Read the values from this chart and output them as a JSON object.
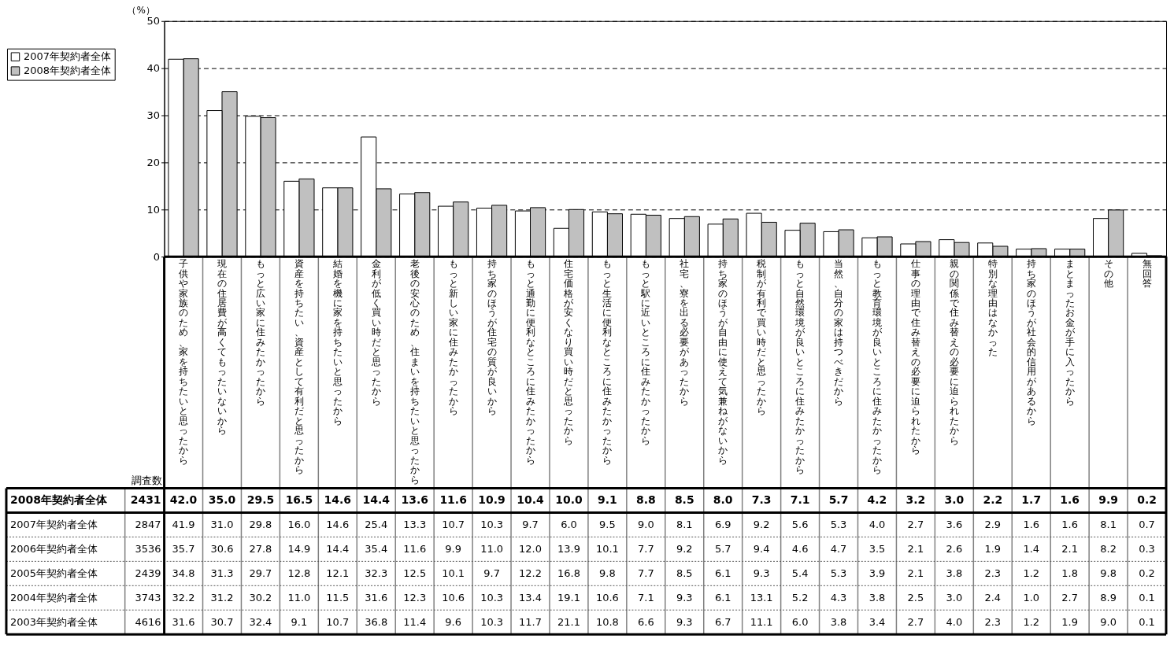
{
  "chart_data": {
    "type": "bar",
    "ylabel": "（%）",
    "categories": [
      "子供や家族のため、家を持ちたいと思ったから",
      "現在の住居費が高くてもったいないから",
      "もっと広い家に住みたかったから",
      "資産を持ちたい、資産として有利だと思ったから",
      "結婚を機に家を持ちたいと思ったから",
      "金利が低く買い時だと思ったから",
      "老後の安心のため、住まいを持ちたいと思ったから",
      "もっと新しい家に住みたかったから",
      "持ち家のほうが住宅の質が良いから",
      "もっと通勤に便利なところに住みたかったから",
      "住宅価格が安くなり買い時だと思ったから",
      "もっと生活に便利なところに住みたかったから",
      "もっと駅に近いところに住みたかったから",
      "社宅、寮を出る必要があったから",
      "持ち家のほうが自由に使えて気兼ねがないから",
      "税制が有利で買い時だと思ったから",
      "もっと自然環境が良いところに住みたかったから",
      "当然、自分の家は持つべきだから",
      "もっと教育環境が良いところに住みたかったから",
      "仕事の理由で住み替えの必要に迫られたから",
      "親の関係で住み替えの必要に迫られたから",
      "特別な理由はなかった",
      "持ち家のほうが社会的信用があるから",
      "まとまったお金が手に入ったから",
      "その他",
      "無回答"
    ],
    "series": [
      {
        "name": "2008年契約者全体",
        "color": "#c0c0c0",
        "values": [
          42.0,
          35.0,
          29.5,
          16.5,
          14.6,
          14.4,
          13.6,
          11.6,
          10.9,
          10.4,
          10.0,
          9.1,
          8.8,
          8.5,
          8.0,
          7.3,
          7.1,
          5.7,
          4.2,
          3.2,
          3.0,
          2.2,
          1.7,
          1.6,
          9.9,
          0.2
        ],
        "value_labels": [
          "42.0",
          "35.0",
          "29.5",
          "16.5",
          "14.6",
          "14.4",
          "13.6",
          "11.6",
          "10.9",
          "10.4",
          "10.0",
          "9.1",
          "8.8",
          "8.5",
          "8.0",
          "7.3",
          "7.1",
          "5.7",
          "4.2",
          "3.2",
          "3.0",
          "2.2",
          "1.7",
          "1.6",
          "9.9",
          "0.2"
        ]
      },
      {
        "name": "2007年契約者全体",
        "color": "#ffffff",
        "values": [
          41.9,
          31.0,
          29.8,
          16.0,
          14.6,
          25.4,
          13.3,
          10.7,
          10.3,
          9.7,
          6.0,
          9.5,
          9.0,
          8.1,
          6.9,
          9.2,
          5.6,
          5.3,
          4.0,
          2.7,
          3.6,
          2.9,
          1.6,
          1.6,
          8.1,
          0.7
        ],
        "value_labels": [
          "41.9",
          "31.0",
          "29.8",
          "16.0",
          "14.6",
          "25.4",
          "13.3",
          "10.7",
          "10.3",
          "9.7",
          "6.0",
          "9.5",
          "9.0",
          "8.1",
          "6.9",
          "9.2",
          "5.6",
          "5.3",
          "4.0",
          "2.7",
          "3.6",
          "2.9",
          "1.6",
          "1.6",
          "8.1",
          "0.7"
        ]
      }
    ],
    "ylim": [
      0,
      50
    ],
    "yticks": [
      0,
      10,
      20,
      30,
      40,
      50
    ],
    "grid": "y",
    "legend": "top left",
    "annotations": [
      "調査数",
      "2431",
      "2847",
      "2006年契約者全体",
      "3536",
      "35.7",
      "30.6",
      "27.8",
      "14.9",
      "14.4",
      "35.4",
      "11.6",
      "9.9",
      "11.0",
      "12.0",
      "13.9",
      "10.1",
      "7.7",
      "9.2",
      "5.7",
      "9.4",
      "4.6",
      "4.7",
      "3.5",
      "2.1",
      "2.6",
      "1.9",
      "1.4",
      "2.1",
      "8.2",
      "0.3",
      "2005年契約者全体",
      "2439",
      "34.8",
      "31.3",
      "29.7",
      "12.8",
      "12.1",
      "32.3",
      "12.5",
      "10.1",
      "9.7",
      "12.2",
      "16.8",
      "9.8",
      "7.7",
      "8.5",
      "6.1",
      "9.3",
      "5.4",
      "5.3",
      "3.9",
      "2.1",
      "3.8",
      "2.3",
      "1.2",
      "1.8",
      "9.8",
      "0.2",
      "2004年契約者全体",
      "3743",
      "32.2",
      "31.2",
      "30.2",
      "11.0",
      "11.5",
      "31.6",
      "12.3",
      "10.6",
      "10.3",
      "13.4",
      "19.1",
      "10.6",
      "7.1",
      "9.3",
      "6.1",
      "13.1",
      "5.2",
      "4.3",
      "3.8",
      "2.5",
      "3.0",
      "2.4",
      "1.0",
      "2.7",
      "8.9",
      "0.1",
      "2003年契約者全体",
      "4616",
      "31.6",
      "30.7",
      "32.4",
      "9.1",
      "10.7",
      "36.8",
      "11.4",
      "9.6",
      "10.3",
      "11.7",
      "21.1",
      "10.8",
      "6.6",
      "9.3",
      "6.7",
      "11.1",
      "6.0",
      "3.8",
      "3.4",
      "2.7",
      "4.0",
      "2.3",
      "1.2",
      "1.9",
      "9.0",
      "0.1"
    ]
  }
}
